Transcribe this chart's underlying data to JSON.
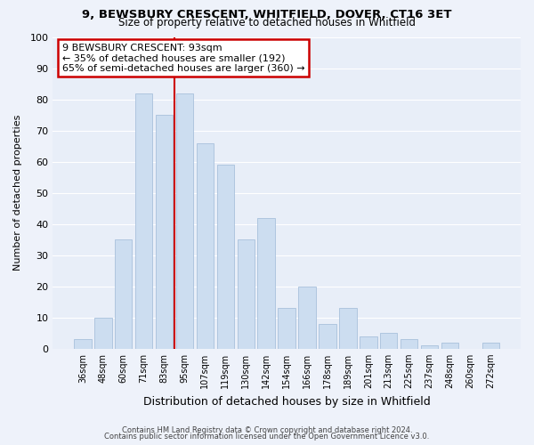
{
  "title1": "9, BEWSBURY CRESCENT, WHITFIELD, DOVER, CT16 3ET",
  "title2": "Size of property relative to detached houses in Whitfield",
  "xlabel": "Distribution of detached houses by size in Whitfield",
  "ylabel": "Number of detached properties",
  "bar_labels": [
    "36sqm",
    "48sqm",
    "60sqm",
    "71sqm",
    "83sqm",
    "95sqm",
    "107sqm",
    "119sqm",
    "130sqm",
    "142sqm",
    "154sqm",
    "166sqm",
    "178sqm",
    "189sqm",
    "201sqm",
    "213sqm",
    "225sqm",
    "237sqm",
    "248sqm",
    "260sqm",
    "272sqm"
  ],
  "bar_values": [
    3,
    10,
    35,
    82,
    75,
    82,
    66,
    59,
    35,
    42,
    13,
    20,
    8,
    13,
    4,
    5,
    3,
    1,
    2,
    0,
    2
  ],
  "bar_color": "#ccddf0",
  "bar_edge_color": "#a8c0dc",
  "vline_index": 5,
  "vline_color": "#cc0000",
  "annotation_title": "9 BEWSBURY CRESCENT: 93sqm",
  "annotation_line1": "← 35% of detached houses are smaller (192)",
  "annotation_line2": "65% of semi-detached houses are larger (360) →",
  "annotation_box_color": "#ffffff",
  "annotation_border_color": "#cc0000",
  "ylim": [
    0,
    100
  ],
  "yticks": [
    0,
    10,
    20,
    30,
    40,
    50,
    60,
    70,
    80,
    90,
    100
  ],
  "footer1": "Contains HM Land Registry data © Crown copyright and database right 2024.",
  "footer2": "Contains public sector information licensed under the Open Government Licence v3.0.",
  "bg_color": "#eef2fa",
  "plot_bg_color": "#e8eef8",
  "grid_color": "#ffffff"
}
